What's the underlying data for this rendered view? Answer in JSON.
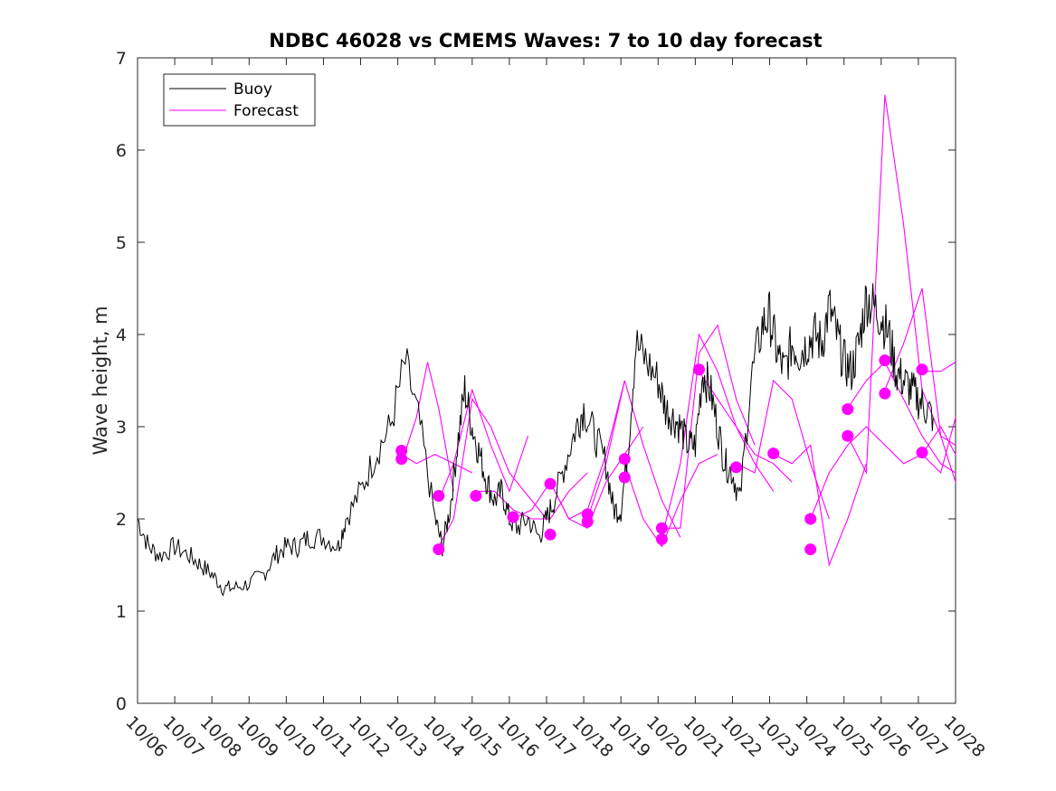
{
  "chart_data": {
    "type": "line",
    "title": "NDBC 46028 vs CMEMS Waves: 7 to 10 day forecast",
    "xlabel": "",
    "ylabel": "Wave height, m",
    "ylim": [
      0,
      7
    ],
    "y_ticks": [
      "0",
      "1",
      "2",
      "3",
      "4",
      "5",
      "6",
      "7"
    ],
    "x_ticks": [
      "10/06",
      "10/07",
      "10/08",
      "10/09",
      "10/10",
      "10/11",
      "10/12",
      "10/13",
      "10/14",
      "10/15",
      "10/16",
      "10/17",
      "10/18",
      "10/19",
      "10/20",
      "10/21",
      "10/22",
      "10/23",
      "10/24",
      "10/25",
      "10/26",
      "10/27",
      "10/28"
    ],
    "xlim_days": [
      0,
      22
    ],
    "legend": {
      "location": "top-left",
      "entries": [
        "Buoy",
        "Forecast"
      ]
    },
    "colors": {
      "buoy": "#000000",
      "forecast": "#ff00ff",
      "axes": "#262626"
    },
    "series": [
      {
        "name": "Buoy",
        "x": [
          0,
          0.3,
          0.6,
          1.0,
          1.4,
          1.7,
          2.0,
          2.3,
          2.6,
          3.0,
          3.4,
          3.7,
          4.0,
          4.3,
          4.6,
          5.0,
          5.4,
          5.6,
          6.0,
          6.4,
          6.8,
          7.2,
          7.6,
          8.0,
          8.2,
          8.4,
          8.6,
          8.8,
          9.0,
          9.2,
          9.4,
          9.6,
          9.8,
          10.0,
          10.2,
          10.5,
          10.8,
          11.0,
          11.2,
          11.5,
          11.8,
          12.0,
          12.3,
          12.6,
          12.8,
          13.0,
          13.2,
          13.4,
          13.7,
          14.0,
          14.2,
          14.4,
          14.6,
          14.8,
          15.0,
          15.2,
          15.4,
          15.6,
          15.8,
          16.0,
          16.2,
          16.5,
          16.8,
          17.0,
          17.2,
          17.4,
          17.6,
          17.8,
          18.0,
          18.2,
          18.4,
          18.6,
          18.8,
          19.0,
          19.2,
          19.4,
          19.6,
          19.8,
          20.0,
          20.2,
          20.4,
          20.6,
          20.8,
          21.0,
          21.2,
          21.4
        ],
        "values": [
          2.0,
          1.7,
          1.6,
          1.7,
          1.6,
          1.5,
          1.4,
          1.25,
          1.25,
          1.3,
          1.4,
          1.6,
          1.7,
          1.7,
          1.8,
          1.8,
          1.7,
          2.0,
          2.3,
          2.7,
          3.0,
          3.7,
          3.0,
          2.0,
          1.7,
          2.1,
          2.8,
          3.4,
          3.0,
          2.7,
          2.4,
          2.2,
          2.3,
          2.0,
          1.9,
          2.0,
          1.8,
          2.0,
          2.2,
          2.6,
          3.0,
          3.2,
          2.9,
          2.6,
          2.1,
          2.1,
          2.8,
          3.9,
          3.7,
          3.5,
          3.2,
          3.1,
          3.0,
          2.8,
          2.8,
          3.6,
          3.4,
          3.0,
          2.6,
          2.5,
          2.2,
          3.5,
          4.1,
          4.2,
          3.8,
          3.6,
          3.9,
          3.8,
          3.9,
          4.0,
          3.9,
          4.3,
          4.0,
          3.7,
          3.6,
          3.9,
          4.4,
          4.3,
          4.2,
          4.0,
          3.6,
          3.5,
          3.4,
          3.3,
          3.2,
          3.1
        ]
      },
      {
        "name": "Forecast",
        "runs": [
          {
            "x": [
              7.1,
              7.5,
              7.8,
              8.1,
              8.5
            ],
            "values": [
              2.6,
              3.1,
              3.7,
              3.2,
              2.3
            ]
          },
          {
            "x": [
              7.1,
              7.5,
              8.0,
              8.5,
              9.0
            ],
            "values": [
              2.7,
              2.6,
              2.7,
              2.6,
              2.5
            ]
          },
          {
            "x": [
              8.1,
              8.5,
              9.0,
              9.5,
              10.0,
              10.5
            ],
            "values": [
              2.2,
              2.6,
              3.4,
              2.8,
              2.3,
              2.9
            ]
          },
          {
            "x": [
              8.1,
              8.5,
              9.0,
              9.5,
              10.0,
              11.0
            ],
            "values": [
              1.7,
              2.0,
              3.3,
              3.0,
              2.5,
              2.0
            ]
          },
          {
            "x": [
              9.1,
              9.6,
              10.1,
              10.6,
              11.1,
              11.6,
              12.1
            ],
            "values": [
              2.3,
              2.3,
              2.1,
              2.0,
              2.0,
              2.3,
              2.5
            ]
          },
          {
            "x": [
              10.1,
              10.6,
              11.1,
              11.6,
              12.1,
              12.6,
              13.1
            ],
            "values": [
              2.0,
              2.1,
              2.4,
              2.0,
              2.1,
              2.7,
              3.5
            ]
          },
          {
            "x": [
              11.1,
              11.6,
              12.1,
              12.6,
              13.1,
              13.6
            ],
            "values": [
              2.4,
              2.0,
              1.9,
              2.4,
              2.7,
              3.0
            ]
          },
          {
            "x": [
              12.1,
              12.6,
              13.1,
              13.6,
              14.1,
              14.6
            ],
            "values": [
              2.0,
              2.6,
              3.5,
              2.8,
              2.2,
              1.8
            ]
          },
          {
            "x": [
              13.1,
              13.6,
              14.1,
              14.6,
              15.1,
              15.6
            ],
            "values": [
              2.6,
              2.0,
              1.7,
              2.2,
              2.6,
              2.7
            ]
          },
          {
            "x": [
              14.1,
              14.6,
              15.1,
              15.6,
              16.1,
              16.6
            ],
            "values": [
              1.9,
              1.9,
              3.8,
              4.1,
              3.3,
              2.8
            ]
          },
          {
            "x": [
              14.1,
              14.6,
              15.1,
              15.6,
              16.1,
              16.6,
              17.1
            ],
            "values": [
              1.8,
              2.6,
              4.0,
              3.6,
              3.0,
              2.6,
              2.3
            ]
          },
          {
            "x": [
              15.1,
              15.6,
              16.1,
              16.6,
              17.1,
              17.6
            ],
            "values": [
              3.6,
              3.3,
              3.0,
              2.7,
              2.6,
              2.4
            ]
          },
          {
            "x": [
              16.1,
              16.6,
              17.1,
              17.6,
              18.1,
              18.6
            ],
            "values": [
              2.6,
              2.5,
              3.5,
              3.3,
              2.6,
              2.0
            ]
          },
          {
            "x": [
              17.1,
              17.6,
              18.1,
              18.6,
              19.1,
              19.6
            ],
            "values": [
              2.7,
              2.6,
              2.8,
              1.5,
              2.0,
              2.6
            ]
          },
          {
            "x": [
              18.1,
              18.6,
              19.1,
              19.6,
              20.1,
              20.6,
              21.1,
              21.6,
              22.0
            ],
            "values": [
              2.0,
              2.5,
              2.8,
              3.0,
              2.8,
              2.6,
              2.7,
              2.5,
              3.1
            ]
          },
          {
            "x": [
              19.1,
              19.6,
              20.1,
              20.6,
              21.1,
              21.6,
              22.0
            ],
            "values": [
              3.2,
              3.5,
              3.7,
              3.3,
              2.9,
              2.6,
              2.5
            ]
          },
          {
            "x": [
              19.1,
              19.6,
              20.1,
              20.6,
              21.1,
              21.6,
              22.0
            ],
            "values": [
              2.9,
              2.5,
              6.6,
              5.2,
              3.4,
              2.9,
              2.4
            ]
          },
          {
            "x": [
              20.1,
              20.6,
              21.1,
              21.6,
              22.0
            ],
            "values": [
              3.4,
              3.9,
              4.5,
              2.9,
              2.8
            ]
          },
          {
            "x": [
              21.1,
              21.6,
              22.0
            ],
            "values": [
              3.6,
              3.6,
              3.7
            ]
          },
          {
            "x": [
              21.1,
              21.6,
              22.0
            ],
            "values": [
              2.7,
              3.0,
              2.7
            ]
          }
        ]
      },
      {
        "name": "Forecast start points",
        "x": [
          7.1,
          7.1,
          8.1,
          8.1,
          9.1,
          10.1,
          11.1,
          11.1,
          12.1,
          12.1,
          13.1,
          13.1,
          14.1,
          14.1,
          15.1,
          16.1,
          17.1,
          18.1,
          18.1,
          19.1,
          19.1,
          20.1,
          20.1,
          21.1,
          21.1
        ],
        "values": [
          2.74,
          2.65,
          2.25,
          1.67,
          2.25,
          2.02,
          2.38,
          1.83,
          2.05,
          1.97,
          2.65,
          2.45,
          1.9,
          1.78,
          3.62,
          2.56,
          2.71,
          2.0,
          1.67,
          3.19,
          2.9,
          3.72,
          3.36,
          3.62,
          2.72
        ]
      }
    ]
  }
}
